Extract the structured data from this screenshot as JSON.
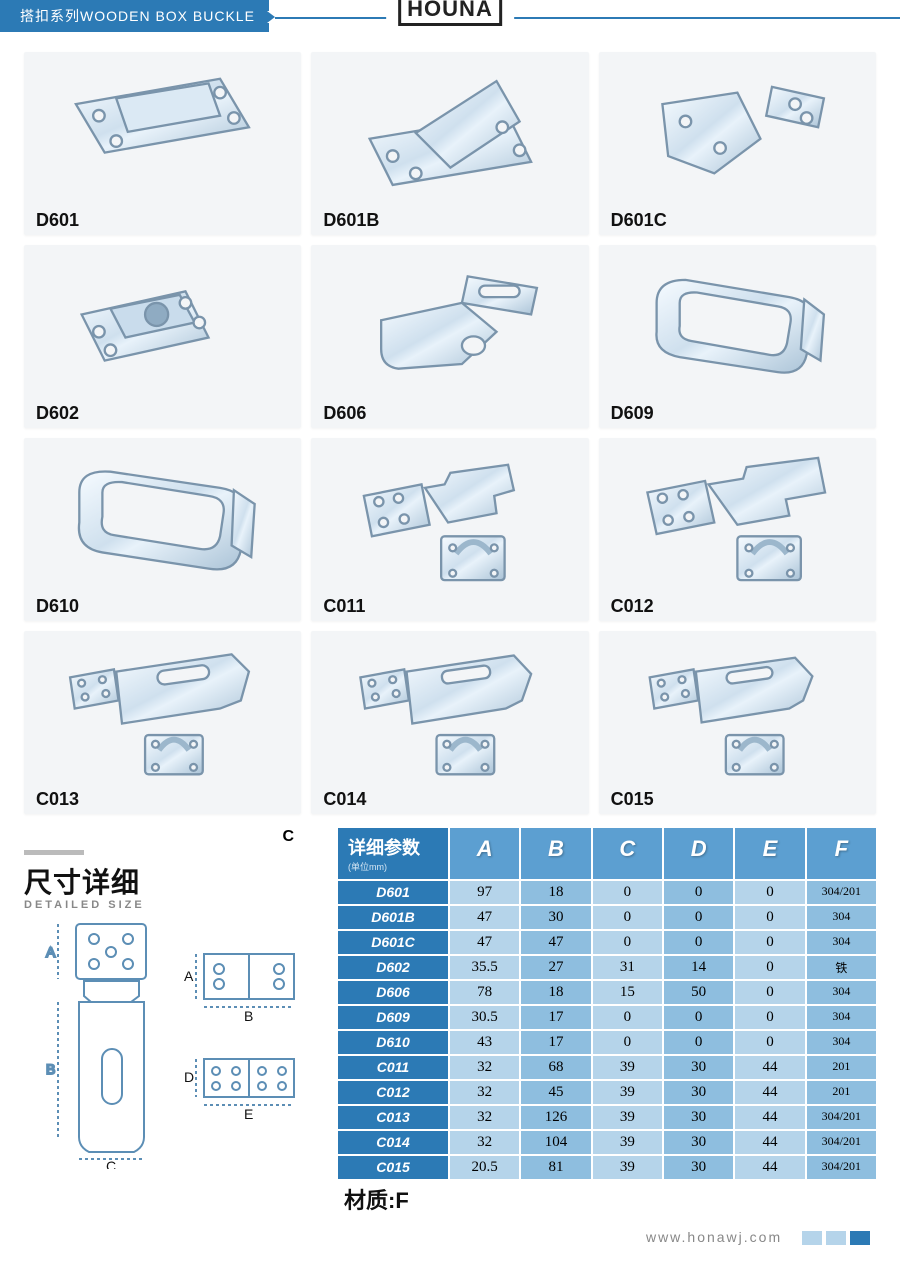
{
  "header": {
    "category": "搭扣系列WOODEN BOX BUCKLE",
    "brand": "HOUNA"
  },
  "products": [
    {
      "code": "D601"
    },
    {
      "code": "D601B"
    },
    {
      "code": "D601C"
    },
    {
      "code": "D602"
    },
    {
      "code": "D606"
    },
    {
      "code": "D609"
    },
    {
      "code": "D610"
    },
    {
      "code": "C011"
    },
    {
      "code": "C012"
    },
    {
      "code": "C013"
    },
    {
      "code": "C014"
    },
    {
      "code": "C015"
    }
  ],
  "diagram_marker_C_top": "C",
  "size": {
    "title": "尺寸详细",
    "subtitle": "DETAILED SIZE",
    "labels": {
      "A": "A",
      "B": "B",
      "C": "C",
      "D": "D",
      "E": "E"
    }
  },
  "params": {
    "heading": "详细参数",
    "heading_sub": "(单位mm)",
    "cols": [
      "A",
      "B",
      "C",
      "D",
      "E",
      "F"
    ],
    "rows": [
      {
        "code": "D601",
        "v": [
          "97",
          "18",
          "0",
          "0",
          "0",
          "304/201"
        ]
      },
      {
        "code": "D601B",
        "v": [
          "47",
          "30",
          "0",
          "0",
          "0",
          "304"
        ]
      },
      {
        "code": "D601C",
        "v": [
          "47",
          "47",
          "0",
          "0",
          "0",
          "304"
        ]
      },
      {
        "code": "D602",
        "v": [
          "35.5",
          "27",
          "31",
          "14",
          "0",
          "铁"
        ]
      },
      {
        "code": "D606",
        "v": [
          "78",
          "18",
          "15",
          "50",
          "0",
          "304"
        ]
      },
      {
        "code": "D609",
        "v": [
          "30.5",
          "17",
          "0",
          "0",
          "0",
          "304"
        ]
      },
      {
        "code": "D610",
        "v": [
          "43",
          "17",
          "0",
          "0",
          "0",
          "304"
        ]
      },
      {
        "code": "C011",
        "v": [
          "32",
          "68",
          "39",
          "30",
          "44",
          "201"
        ]
      },
      {
        "code": "C012",
        "v": [
          "32",
          "45",
          "39",
          "30",
          "44",
          "201"
        ]
      },
      {
        "code": "C013",
        "v": [
          "32",
          "126",
          "39",
          "30",
          "44",
          "304/201"
        ]
      },
      {
        "code": "C014",
        "v": [
          "32",
          "104",
          "39",
          "30",
          "44",
          "304/201"
        ]
      },
      {
        "code": "C015",
        "v": [
          "20.5",
          "81",
          "39",
          "30",
          "44",
          "304/201"
        ]
      }
    ],
    "material_label": "材质:F"
  },
  "footer": {
    "url": "www.honawj.com"
  },
  "colors": {
    "brand_blue": "#2c7ab5",
    "head_blue": "#5c9fd1",
    "cell_light": "#b5d4ea",
    "cell_dark": "#8ebedf",
    "card_bg": "#f3f5f7",
    "line": "#5c8eb5",
    "text": "#111"
  }
}
